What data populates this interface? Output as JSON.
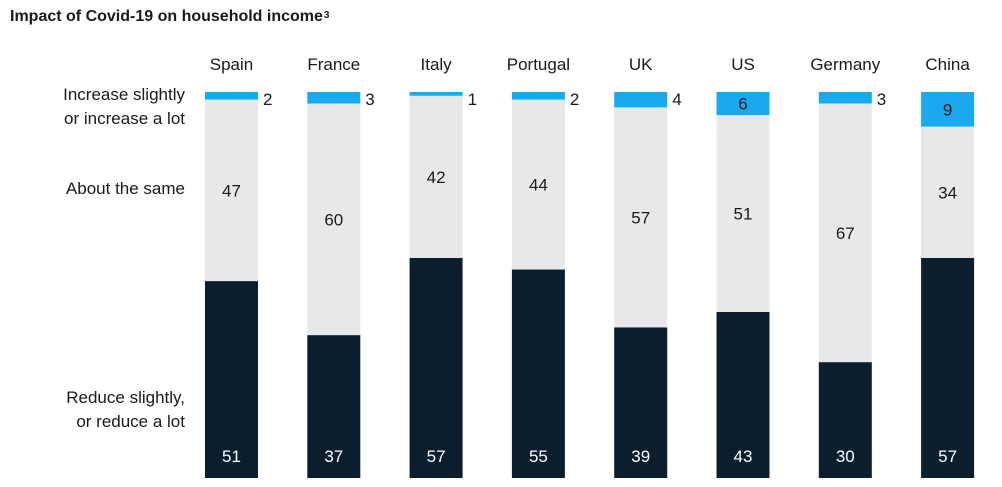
{
  "title": {
    "text": "Impact of Covid-19 on household income",
    "footnote": "3"
  },
  "row_labels": {
    "increase_line1": "Increase slightly",
    "increase_line2": "or increase a lot",
    "same": "About the same",
    "reduce_line1": "Reduce slightly,",
    "reduce_line2": "or reduce a lot"
  },
  "colors": {
    "increase": "#1aa9ed",
    "same": "#e7e8ea",
    "reduce": "#0a1e2e",
    "text": "#1a1a1a",
    "reduce_text": "#ffffff"
  },
  "chart_data": {
    "type": "bar",
    "stacked": true,
    "percent_stacked": true,
    "categories": [
      "Spain",
      "France",
      "Italy",
      "Portugal",
      "UK",
      "US",
      "Germany",
      "China"
    ],
    "series": [
      {
        "key": "increase",
        "name": "Increase slightly or increase a lot",
        "values": [
          2,
          3,
          1,
          2,
          4,
          6,
          3,
          9
        ]
      },
      {
        "key": "same",
        "name": "About the same",
        "values": [
          47,
          60,
          42,
          44,
          57,
          51,
          67,
          34
        ]
      },
      {
        "key": "reduce",
        "name": "Reduce slightly, or reduce a lot",
        "values": [
          51,
          37,
          57,
          55,
          39,
          43,
          30,
          57
        ]
      }
    ],
    "title": "Impact of Covid-19 on household income",
    "xlabel": "",
    "ylabel": "",
    "ylim": [
      0,
      100
    ],
    "grid": false,
    "legend": "left row labels"
  }
}
